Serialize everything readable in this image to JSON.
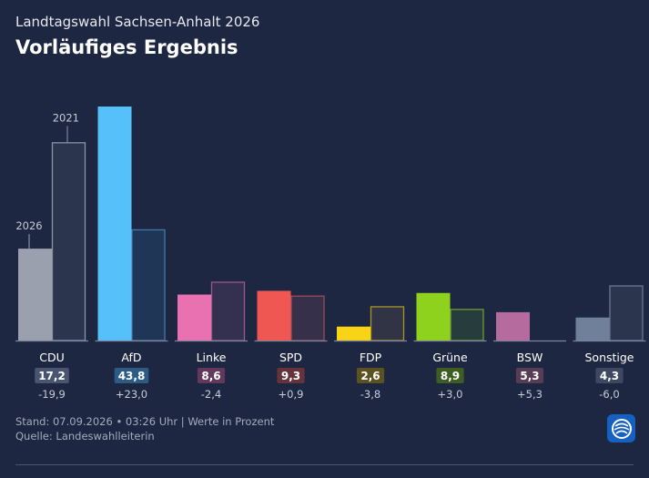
{
  "header": {
    "subtitle": "Landtagswahl Sachsen-Anhalt 2026",
    "title": "Vorläufiges Ergebnis"
  },
  "footer": {
    "stand": "Stand: 07.09.2026 • 03:26 Uhr | Werte in Prozent",
    "quelle": "Quelle: Landeswahlleiterin"
  },
  "logo": {
    "icon": "ard-logo-icon"
  },
  "chart_data": {
    "type": "bar",
    "annotations": {
      "current_label": "2026",
      "previous_label": "2021"
    },
    "ylim": [
      0,
      45
    ],
    "categories": [
      "CDU",
      "AfD",
      "Linke",
      "SPD",
      "FDP",
      "Grüne",
      "BSW",
      "Sonstige"
    ],
    "series": [
      {
        "name": "2026",
        "values": [
          17.2,
          43.8,
          8.6,
          9.3,
          2.6,
          8.9,
          5.3,
          4.3
        ]
      },
      {
        "name": "2021",
        "values": [
          37.1,
          20.8,
          11.0,
          8.4,
          6.4,
          5.9,
          0.0,
          10.3
        ]
      }
    ],
    "value_labels": [
      "17,2",
      "43,8",
      "8,6",
      "9,3",
      "2,6",
      "8,9",
      "5,3",
      "4,3"
    ],
    "diff_labels": [
      "-19,9",
      "+23,0",
      "-2,4",
      "+0,9",
      "-3,8",
      "+3,0",
      "+5,3",
      "-6,0"
    ],
    "colors": [
      "#9aa0ad",
      "#56c0fb",
      "#ea71b1",
      "#ef5753",
      "#f8d316",
      "#8fd21d",
      "#b56b9e",
      "#707f9a"
    ],
    "prev_fill": [
      "#2b354d",
      "#203656",
      "#34304f",
      "#37304a",
      "#303445",
      "#273d3d",
      "#2b354d",
      "#2b354d"
    ],
    "prev_border": [
      "#8b93a6",
      "#4578a8",
      "#9a5788",
      "#9c4b55",
      "#a89523",
      "#6f9838",
      "#7e5a80",
      "#6b7690"
    ],
    "badge_colors": [
      "#495570",
      "#2c5c86",
      "#63385c",
      "#66333c",
      "#5c5121",
      "#3e5d22",
      "#573c55",
      "#3e4861"
    ]
  }
}
